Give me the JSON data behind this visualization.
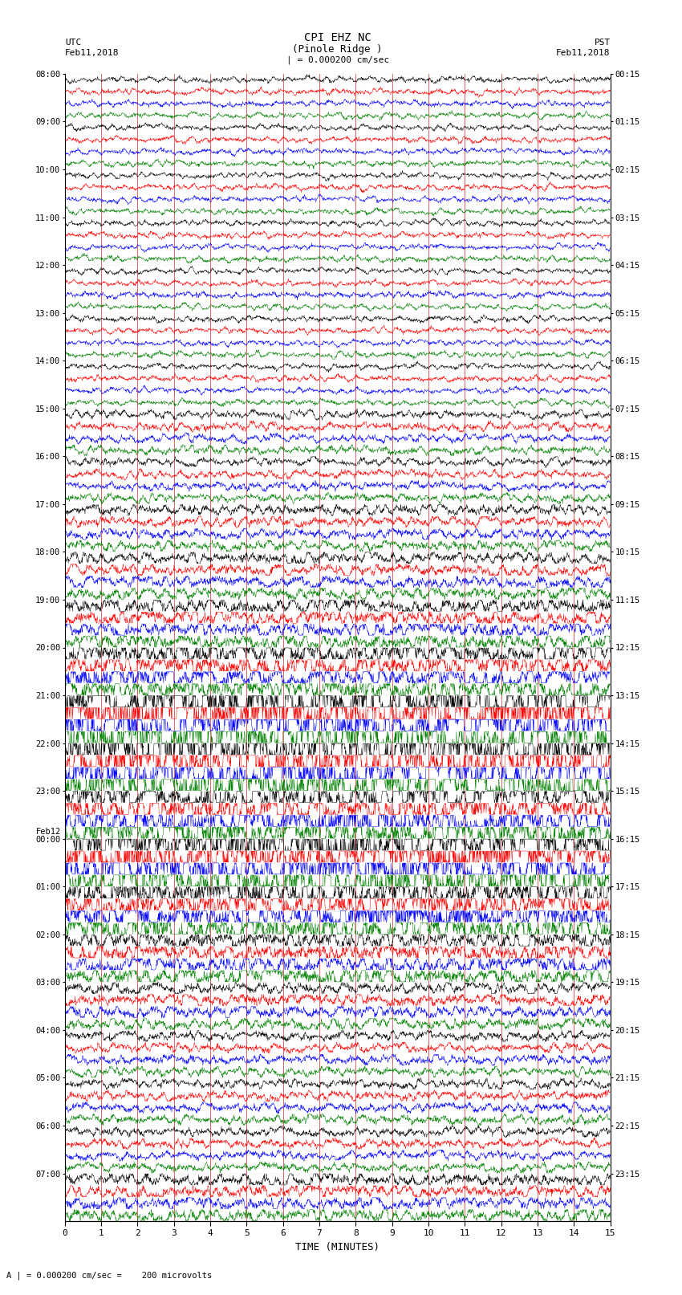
{
  "title_line1": "CPI EHZ NC",
  "title_line2": "(Pinole Ridge )",
  "scale_label": "| = 0.000200 cm/sec",
  "left_header": "UTC",
  "left_date": "Feb11,2018",
  "right_header": "PST",
  "right_date": "Feb11,2018",
  "xlabel": "TIME (MINUTES)",
  "bottom_note": "A | = 0.000200 cm/sec =    200 microvolts",
  "utc_labels": [
    "08:00",
    "09:00",
    "10:00",
    "11:00",
    "12:00",
    "13:00",
    "14:00",
    "15:00",
    "16:00",
    "17:00",
    "18:00",
    "19:00",
    "20:00",
    "21:00",
    "22:00",
    "23:00",
    "00:00",
    "01:00",
    "02:00",
    "03:00",
    "04:00",
    "05:00",
    "06:00",
    "07:00"
  ],
  "feb12_row": 16,
  "pst_labels": [
    "00:15",
    "01:15",
    "02:15",
    "03:15",
    "04:15",
    "05:15",
    "06:15",
    "07:15",
    "08:15",
    "09:15",
    "10:15",
    "11:15",
    "12:15",
    "13:15",
    "14:15",
    "15:15",
    "16:15",
    "17:15",
    "18:15",
    "19:15",
    "20:15",
    "21:15",
    "22:15",
    "23:15"
  ],
  "trace_colors": [
    "black",
    "red",
    "blue",
    "green"
  ],
  "num_rows": 24,
  "traces_per_row": 4,
  "xmin": 0,
  "xmax": 15,
  "bg_color": "#ffffff",
  "grid_color": "#cc0000",
  "font_family": "monospace",
  "row_amplitudes": [
    0.032,
    0.032,
    0.032,
    0.032,
    0.032,
    0.032,
    0.032,
    0.045,
    0.045,
    0.055,
    0.065,
    0.085,
    0.13,
    0.38,
    0.35,
    0.2,
    0.28,
    0.18,
    0.1,
    0.065,
    0.05,
    0.05,
    0.048,
    0.07
  ]
}
